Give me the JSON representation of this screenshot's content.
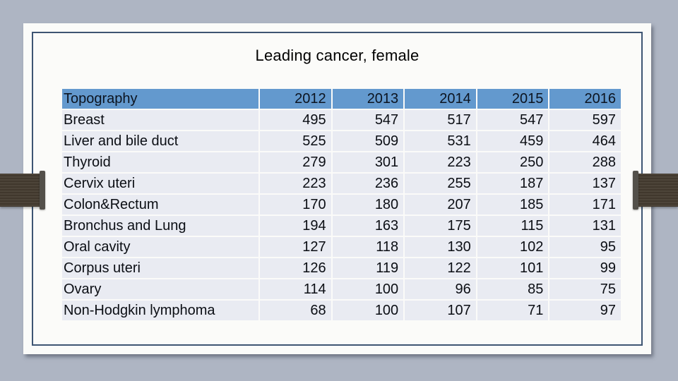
{
  "slide": {
    "title": "Leading cancer, female"
  },
  "table": {
    "columns": [
      "Topography",
      "2012",
      "2013",
      "2014",
      "2015",
      "2016"
    ],
    "rows": [
      {
        "label": "Breast",
        "values": [
          "495",
          "547",
          "517",
          "547",
          "597"
        ]
      },
      {
        "label": "Liver and bile duct",
        "values": [
          "525",
          "509",
          "531",
          "459",
          "464"
        ]
      },
      {
        "label": "Thyroid",
        "values": [
          "279",
          "301",
          "223",
          "250",
          "288"
        ]
      },
      {
        "label": "Cervix uteri",
        "values": [
          "223",
          "236",
          "255",
          "187",
          "137"
        ]
      },
      {
        "label": "Colon&Rectum",
        "values": [
          "170",
          "180",
          "207",
          "185",
          "171"
        ]
      },
      {
        "label": "Bronchus and Lung",
        "values": [
          "194",
          "163",
          "175",
          "115",
          "131"
        ]
      },
      {
        "label": "Oral cavity",
        "values": [
          "127",
          "118",
          "130",
          "102",
          "95"
        ]
      },
      {
        "label": "Corpus uteri",
        "values": [
          "126",
          "119",
          "122",
          "101",
          "99"
        ]
      },
      {
        "label": "Ovary",
        "values": [
          "114",
          "100",
          "96",
          "85",
          "75"
        ]
      },
      {
        "label": "Non-Hodgkin lymphoma",
        "values": [
          "68",
          "100",
          "107",
          "71",
          "97"
        ]
      }
    ]
  },
  "chart_data": {
    "type": "table",
    "title": "Leading cancer, female",
    "categories": [
      "Breast",
      "Liver and bile duct",
      "Thyroid",
      "Cervix uteri",
      "Colon&Rectum",
      "Bronchus and Lung",
      "Oral cavity",
      "Corpus uteri",
      "Ovary",
      "Non-Hodgkin lymphoma"
    ],
    "series": [
      {
        "name": "2012",
        "values": [
          495,
          525,
          279,
          223,
          170,
          194,
          127,
          126,
          114,
          68
        ]
      },
      {
        "name": "2013",
        "values": [
          547,
          509,
          301,
          236,
          180,
          163,
          118,
          119,
          100,
          100
        ]
      },
      {
        "name": "2014",
        "values": [
          517,
          531,
          223,
          255,
          207,
          175,
          130,
          122,
          96,
          107
        ]
      },
      {
        "name": "2015",
        "values": [
          547,
          459,
          250,
          187,
          185,
          115,
          102,
          101,
          85,
          71
        ]
      },
      {
        "name": "2016",
        "values": [
          597,
          464,
          288,
          137,
          171,
          131,
          95,
          99,
          75,
          97
        ]
      }
    ]
  },
  "colors": {
    "canvas_bg": "#aeb5c3",
    "slide_bg": "#fbfbf9",
    "frame_border": "#3e5573",
    "header_bg": "#6399ce",
    "row_bg": "#e9ebf2",
    "binder_bar": "#463d31",
    "binder_bar_cap": "#53504a",
    "text": "#000000"
  }
}
